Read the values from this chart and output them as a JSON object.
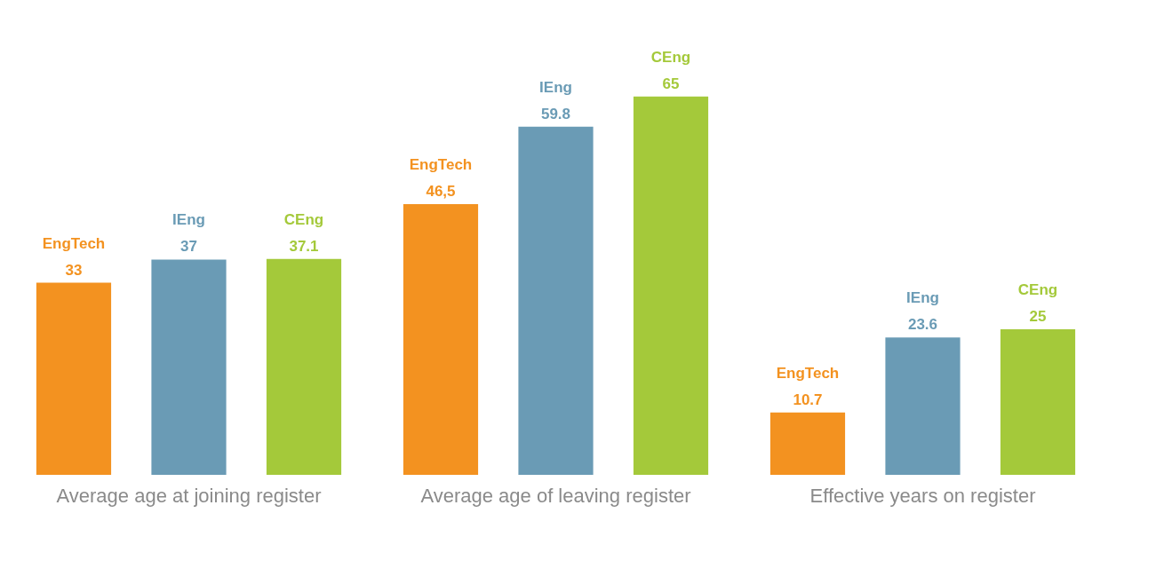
{
  "chart_data": [
    {
      "type": "bar",
      "title": "Average age at joining register",
      "categories": [
        "EngTech",
        "IEng",
        "CEng"
      ],
      "values": [
        33,
        37,
        37.1
      ],
      "value_labels": [
        "33",
        "37",
        "37.1"
      ],
      "colors": [
        "#f39220",
        "#6a9bb5",
        "#a4c93a"
      ]
    },
    {
      "type": "bar",
      "title": "Average age of leaving register",
      "categories": [
        "EngTech",
        "IEng",
        "CEng"
      ],
      "values": [
        46.5,
        59.8,
        65
      ],
      "value_labels": [
        "46,5",
        "59.8",
        "65"
      ],
      "colors": [
        "#f39220",
        "#6a9bb5",
        "#a4c93a"
      ]
    },
    {
      "type": "bar",
      "title": "Effective years on register",
      "categories": [
        "EngTech",
        "IEng",
        "CEng"
      ],
      "values": [
        10.7,
        23.6,
        25
      ],
      "value_labels": [
        "10.7",
        "23.6",
        "25"
      ],
      "colors": [
        "#f39220",
        "#6a9bb5",
        "#a4c93a"
      ]
    }
  ]
}
